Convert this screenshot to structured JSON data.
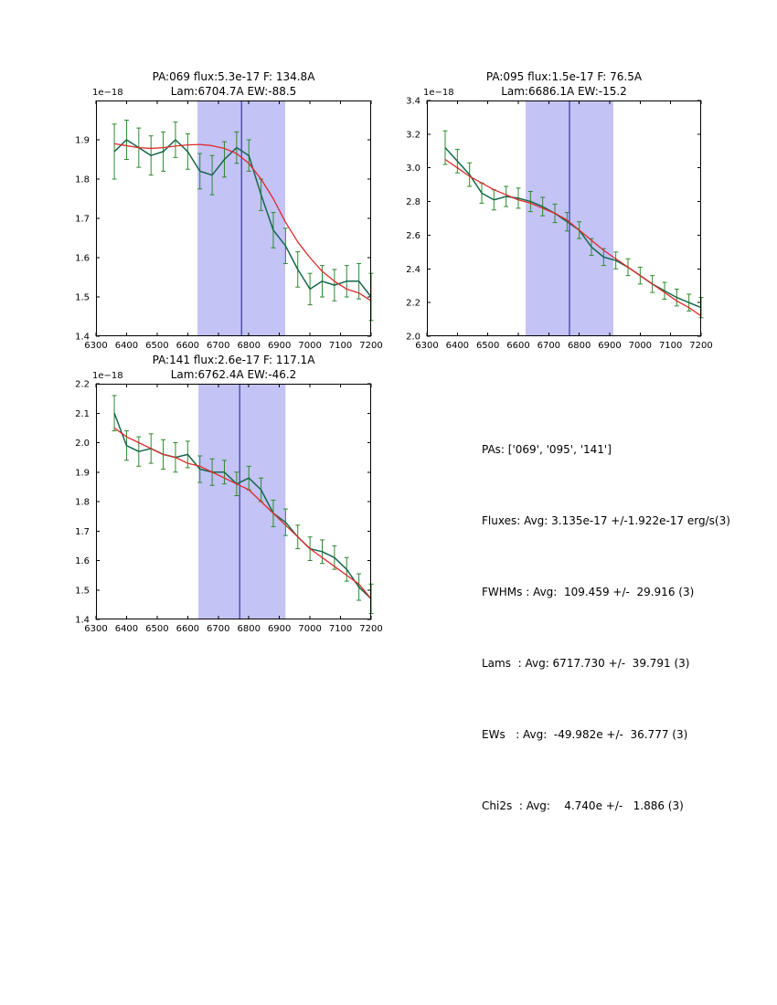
{
  "figure": {
    "background": "#ffffff"
  },
  "chart_data": [
    {
      "type": "line",
      "name": "pa069-spectrum",
      "title_line1": "PA:069 flux:5.3e-17 F: 134.8A",
      "title_line2": "Lam:6704.7A EW:-88.5",
      "offset_label": "1e−18",
      "xlabel": "",
      "ylabel": "",
      "xlim": [
        6300,
        7200
      ],
      "ylim": [
        1.4,
        2.0
      ],
      "xticks": [
        6300,
        6400,
        6500,
        6600,
        6700,
        6800,
        6900,
        7000,
        7100,
        7200
      ],
      "yticks": [
        1.4,
        1.5,
        1.6,
        1.7,
        1.8,
        1.9
      ],
      "ytick_decimals": 1,
      "grid": false,
      "band": [
        6632,
        6919
      ],
      "band_color": "#9191ee",
      "band_opacity": 0.55,
      "vline": 6776,
      "vline_color": "#1a1a8c",
      "series": [
        {
          "name": "data",
          "color": "#15684a",
          "err_color": "#2d8a2d",
          "x": [
            6360,
            6400,
            6440,
            6480,
            6520,
            6560,
            6600,
            6640,
            6680,
            6720,
            6760,
            6800,
            6840,
            6880,
            6920,
            6960,
            7000,
            7040,
            7080,
            7120,
            7160,
            7200
          ],
          "y": [
            1.87,
            1.9,
            1.88,
            1.86,
            1.87,
            1.9,
            1.87,
            1.82,
            1.81,
            1.85,
            1.88,
            1.86,
            1.76,
            1.67,
            1.63,
            1.57,
            1.52,
            1.54,
            1.53,
            1.54,
            1.54,
            1.5
          ],
          "yerr": [
            0.07,
            0.05,
            0.05,
            0.05,
            0.05,
            0.045,
            0.045,
            0.045,
            0.05,
            0.045,
            0.04,
            0.04,
            0.04,
            0.045,
            0.045,
            0.045,
            0.04,
            0.04,
            0.04,
            0.04,
            0.045,
            0.06
          ]
        },
        {
          "name": "fit",
          "color": "#e02929",
          "x": [
            6360,
            6400,
            6440,
            6480,
            6520,
            6560,
            6600,
            6640,
            6680,
            6720,
            6760,
            6800,
            6840,
            6880,
            6920,
            6960,
            7000,
            7040,
            7080,
            7120,
            7160,
            7200
          ],
          "y": [
            1.89,
            1.885,
            1.88,
            1.878,
            1.88,
            1.884,
            1.887,
            1.888,
            1.885,
            1.878,
            1.865,
            1.84,
            1.8,
            1.75,
            1.69,
            1.64,
            1.6,
            1.565,
            1.54,
            1.52,
            1.51,
            1.49
          ]
        }
      ]
    },
    {
      "type": "line",
      "name": "pa095-spectrum",
      "title_line1": "PA:095 flux:1.5e-17 F: 76.5A",
      "title_line2": "Lam:6686.1A EW:-15.2",
      "offset_label": "1e−18",
      "xlabel": "",
      "ylabel": "",
      "xlim": [
        6300,
        7200
      ],
      "ylim": [
        2.0,
        3.4
      ],
      "xticks": [
        6300,
        6400,
        6500,
        6600,
        6700,
        6800,
        6900,
        7000,
        7100,
        7200
      ],
      "yticks": [
        2.0,
        2.2,
        2.4,
        2.6,
        2.8,
        3.0,
        3.2,
        3.4
      ],
      "ytick_decimals": 1,
      "grid": false,
      "band": [
        6624,
        6912
      ],
      "band_color": "#9191ee",
      "band_opacity": 0.55,
      "vline": 6768,
      "vline_color": "#1a1a8c",
      "series": [
        {
          "name": "data",
          "color": "#15684a",
          "err_color": "#2d8a2d",
          "x": [
            6360,
            6400,
            6440,
            6480,
            6520,
            6560,
            6600,
            6640,
            6680,
            6720,
            6760,
            6800,
            6840,
            6880,
            6920,
            6960,
            7000,
            7040,
            7080,
            7120,
            7160,
            7200
          ],
          "y": [
            3.12,
            3.04,
            2.96,
            2.85,
            2.81,
            2.83,
            2.82,
            2.8,
            2.77,
            2.73,
            2.68,
            2.63,
            2.53,
            2.47,
            2.45,
            2.41,
            2.36,
            2.31,
            2.27,
            2.23,
            2.2,
            2.17
          ],
          "yerr": [
            0.1,
            0.07,
            0.07,
            0.06,
            0.06,
            0.06,
            0.06,
            0.06,
            0.055,
            0.055,
            0.055,
            0.05,
            0.05,
            0.05,
            0.05,
            0.05,
            0.05,
            0.05,
            0.05,
            0.05,
            0.05,
            0.06
          ]
        },
        {
          "name": "fit",
          "color": "#e02929",
          "x": [
            6360,
            6400,
            6440,
            6480,
            6520,
            6560,
            6600,
            6640,
            6680,
            6720,
            6760,
            6800,
            6840,
            6880,
            6920,
            6960,
            7000,
            7040,
            7080,
            7120,
            7160,
            7200
          ],
          "y": [
            3.05,
            3.0,
            2.95,
            2.91,
            2.87,
            2.84,
            2.81,
            2.79,
            2.76,
            2.73,
            2.69,
            2.63,
            2.57,
            2.51,
            2.46,
            2.41,
            2.36,
            2.31,
            2.26,
            2.21,
            2.17,
            2.12
          ]
        }
      ]
    },
    {
      "type": "line",
      "name": "pa141-spectrum",
      "title_line1": "PA:141 flux:2.6e-17 F: 117.1A",
      "title_line2": "Lam:6762.4A EW:-46.2",
      "offset_label": "1e−18",
      "xlabel": "",
      "ylabel": "",
      "xlim": [
        6300,
        7200
      ],
      "ylim": [
        1.4,
        2.2
      ],
      "xticks": [
        6300,
        6400,
        6500,
        6600,
        6700,
        6800,
        6900,
        7000,
        7100,
        7200
      ],
      "yticks": [
        1.4,
        1.5,
        1.6,
        1.7,
        1.8,
        1.9,
        2.0,
        2.1,
        2.2
      ],
      "ytick_decimals": 1,
      "grid": false,
      "band": [
        6635,
        6920
      ],
      "band_color": "#9191ee",
      "band_opacity": 0.55,
      "vline": 6770,
      "vline_color": "#1a1a8c",
      "series": [
        {
          "name": "data",
          "color": "#15684a",
          "err_color": "#2d8a2d",
          "x": [
            6360,
            6400,
            6440,
            6480,
            6520,
            6560,
            6600,
            6640,
            6680,
            6720,
            6760,
            6800,
            6840,
            6880,
            6920,
            6960,
            7000,
            7040,
            7080,
            7120,
            7160,
            7200
          ],
          "y": [
            2.1,
            1.99,
            1.97,
            1.98,
            1.96,
            1.95,
            1.96,
            1.91,
            1.9,
            1.9,
            1.86,
            1.88,
            1.84,
            1.76,
            1.73,
            1.68,
            1.64,
            1.63,
            1.61,
            1.57,
            1.51,
            1.47
          ],
          "yerr": [
            0.06,
            0.05,
            0.05,
            0.05,
            0.05,
            0.05,
            0.045,
            0.045,
            0.045,
            0.04,
            0.04,
            0.04,
            0.04,
            0.045,
            0.045,
            0.04,
            0.04,
            0.04,
            0.04,
            0.04,
            0.045,
            0.05
          ]
        },
        {
          "name": "fit",
          "color": "#e02929",
          "x": [
            6360,
            6400,
            6440,
            6480,
            6520,
            6560,
            6600,
            6640,
            6680,
            6720,
            6760,
            6800,
            6840,
            6880,
            6920,
            6960,
            7000,
            7040,
            7080,
            7120,
            7160,
            7200
          ],
          "y": [
            2.05,
            2.02,
            2.0,
            1.98,
            1.96,
            1.95,
            1.93,
            1.92,
            1.9,
            1.88,
            1.86,
            1.84,
            1.8,
            1.76,
            1.72,
            1.68,
            1.64,
            1.61,
            1.58,
            1.55,
            1.52,
            1.47
          ]
        }
      ]
    }
  ],
  "stats_panel": {
    "lines": [
      "PAs: ['069', '095', '141']",
      "Fluxes: Avg: 3.135e-17 +/-1.922e-17 erg/s(3)",
      "FWHMs : Avg:  109.459 +/-  29.916 (3)",
      "Lams  : Avg: 6717.730 +/-  39.791 (3)",
      "EWs   : Avg:  -49.982e +/-  36.777 (3)",
      "Chi2s  : Avg:    4.740e +/-   1.886 (3)"
    ]
  }
}
